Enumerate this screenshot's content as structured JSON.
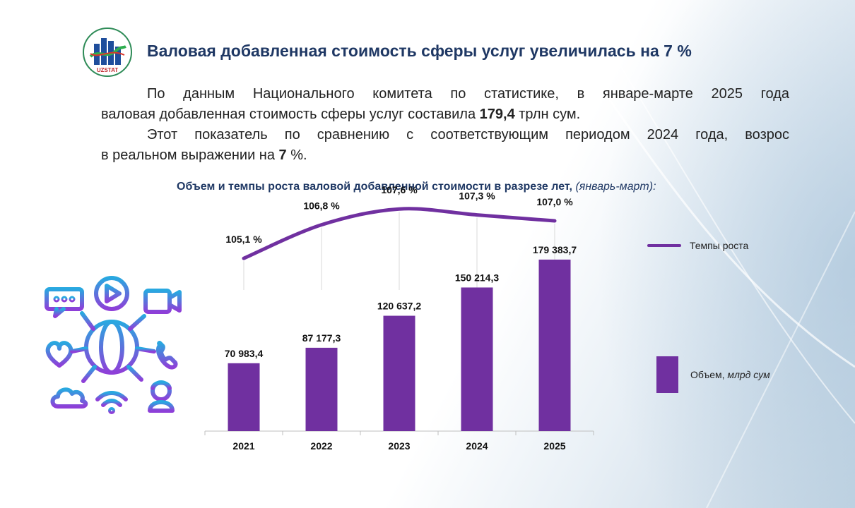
{
  "logo": {
    "text": "UZSTAT"
  },
  "title": "Валовая добавленная стоимость сферы услуг увеличилась на 7 %",
  "paragraphs": {
    "p1_line1": "По данным Национального комитета по статистике, в январе-марте 2025 года",
    "p1_line2_before": "валовая добавленная стоимость сферы услуг составила ",
    "p1_line2_bold": "179,4",
    "p1_line2_after": " трлн сум.",
    "p2_line1": "Этот показатель по сравнению с соответствующим периодом 2024 года, возрос",
    "p2_line2_before": "в реальном выражении на ",
    "p2_line2_bold": "7",
    "p2_line2_after": " %."
  },
  "chart_title": {
    "main": "Объем и темпы роста валовой добавленной стоимости в разрезе лет,",
    "italic": " (январь-март):"
  },
  "legend": {
    "line_label": "Темпы роста",
    "bar_label": "Объем, ",
    "bar_unit": "млрд сум"
  },
  "colors": {
    "bar": "#7030a0",
    "line": "#7030a0",
    "title": "#1f3864"
  },
  "chart_data": {
    "type": "bar+line",
    "categories": [
      "2021",
      "2022",
      "2023",
      "2024",
      "2025"
    ],
    "series": [
      {
        "name": "Объем, млрд сум",
        "type": "bar",
        "values": [
          70983.4,
          87177.3,
          120637.2,
          150214.3,
          179383.7
        ],
        "labels": [
          "70 983,4",
          "87 177,3",
          "120 637,2",
          "150 214,3",
          "179 383,7"
        ]
      },
      {
        "name": "Темпы роста",
        "type": "line",
        "values": [
          105.1,
          106.8,
          107.6,
          107.3,
          107.0
        ],
        "labels": [
          "105,1 %",
          "106,8 %",
          "107,6 %",
          "107,3 %",
          "107,0 %"
        ]
      }
    ],
    "bar_ylim": [
      0,
      200000
    ],
    "line_ylim": [
      103.5,
      108.0
    ],
    "grid": false,
    "legend_position": "right"
  },
  "illustration": {
    "icons": [
      "chat-icon",
      "play-icon",
      "video-camera-icon",
      "heart-icon",
      "globe-icon",
      "phone-icon",
      "cloud-icon",
      "wifi-icon",
      "user-icon"
    ]
  }
}
